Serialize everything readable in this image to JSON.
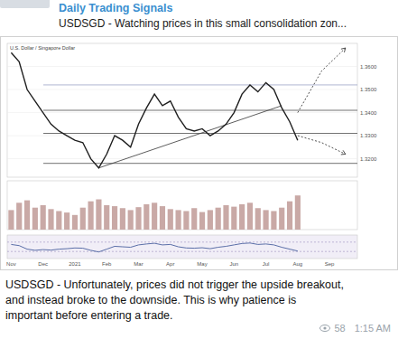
{
  "header": {
    "channel": "Daily Trading Signals",
    "preview": "USDSGD - Watching prices in this small consolidation zon..."
  },
  "chart_data": [
    {
      "type": "line",
      "title": "U.S. Dollar / Singapore Dollar",
      "color": "#1f1f1f",
      "tick_labels": "y",
      "grid": false,
      "categories": [
        "Nov",
        null,
        null,
        null,
        "Dec",
        null,
        null,
        null,
        "2021",
        null,
        null,
        null,
        "Feb",
        null,
        null,
        null,
        "Mar",
        null,
        null,
        null,
        "Apr",
        null,
        null,
        null,
        "May",
        null,
        null,
        null,
        "Jun",
        null,
        null,
        null,
        "Jul",
        null,
        null,
        null,
        "Aug",
        null,
        null,
        null,
        "Sep",
        null,
        null,
        null
      ],
      "values": [
        1.366,
        1.362,
        1.35,
        1.345,
        1.34,
        1.335,
        1.332,
        1.33,
        1.328,
        1.327,
        1.32,
        1.316,
        1.322,
        1.33,
        1.328,
        1.325,
        1.335,
        1.342,
        1.348,
        1.343,
        1.345,
        1.338,
        1.333,
        1.332,
        1.333,
        1.33,
        1.332,
        1.335,
        1.34,
        1.348,
        1.352,
        1.349,
        1.353,
        1.35,
        1.342,
        1.336,
        1.328,
        null,
        null,
        null,
        null,
        null,
        null,
        null
      ],
      "ylim": [
        1.312,
        1.37
      ],
      "yticks": [
        {
          "value": 1.32,
          "label": "1.3200"
        },
        {
          "value": 1.33,
          "label": "1.3300"
        },
        {
          "value": 1.34,
          "label": "1.3400"
        },
        {
          "value": 1.35,
          "label": "1.3500"
        },
        {
          "value": 1.36,
          "label": "1.3600"
        }
      ],
      "levels": [
        1.352,
        1.341,
        1.331,
        1.318
      ],
      "trendline": {
        "x": [
          11,
          34
        ],
        "y": [
          1.316,
          1.343
        ]
      },
      "projections": [
        {
          "x": [
            36,
            39,
            42
          ],
          "y": [
            1.34,
            1.358,
            1.368
          ]
        },
        {
          "x": [
            36,
            39,
            42
          ],
          "y": [
            1.33,
            1.327,
            1.322
          ]
        }
      ]
    },
    {
      "type": "bar",
      "color": "#c9a9a6",
      "tick_labels": false,
      "categories": [
        "Nov",
        null,
        null,
        null,
        "Dec",
        null,
        null,
        null,
        "2021",
        null,
        null,
        null,
        "Feb",
        null,
        null,
        null,
        "Mar",
        null,
        null,
        null,
        "Apr",
        null,
        null,
        null,
        "May",
        null,
        null,
        null,
        "Jun",
        null,
        null,
        null,
        "Jul",
        null,
        null,
        null,
        "Aug",
        null,
        null,
        null,
        "Sep",
        null,
        null,
        null
      ],
      "values": [
        40,
        55,
        60,
        45,
        50,
        42,
        38,
        35,
        30,
        45,
        58,
        62,
        50,
        48,
        44,
        40,
        46,
        52,
        55,
        48,
        42,
        40,
        38,
        44,
        36,
        40,
        45,
        50,
        47,
        52,
        55,
        44,
        40,
        38,
        45,
        58,
        70,
        null,
        null,
        null,
        null,
        null,
        null,
        null
      ],
      "ylim": [
        0,
        100
      ]
    },
    {
      "type": "line",
      "color": "#5b6fa8",
      "tick_labels": "x",
      "categories": [
        "Nov",
        null,
        null,
        null,
        "Dec",
        null,
        null,
        null,
        "2021",
        null,
        null,
        null,
        "Feb",
        null,
        null,
        null,
        "Mar",
        null,
        null,
        null,
        "Apr",
        null,
        null,
        null,
        "May",
        null,
        null,
        null,
        "Jun",
        null,
        null,
        null,
        "Jul",
        null,
        null,
        null,
        "Aug",
        null,
        null,
        null,
        "Sep",
        null,
        null,
        null
      ],
      "values": [
        60,
        55,
        40,
        35,
        38,
        36,
        40,
        42,
        45,
        44,
        35,
        28,
        40,
        52,
        50,
        48,
        58,
        62,
        65,
        58,
        60,
        50,
        45,
        44,
        46,
        42,
        48,
        52,
        58,
        64,
        66,
        60,
        62,
        58,
        48,
        40,
        32,
        null,
        null,
        null,
        null,
        null,
        null,
        null
      ],
      "ylim": [
        0,
        100
      ],
      "yticks": [
        30,
        70
      ]
    }
  ],
  "message": {
    "lines": [
      "USDSGD - Unfortunately, prices did not trigger the upside breakout,",
      "and instead broke to the downside. This is why patience is",
      "important before entering a trade."
    ],
    "views": 58,
    "time": "1:15 AM"
  }
}
